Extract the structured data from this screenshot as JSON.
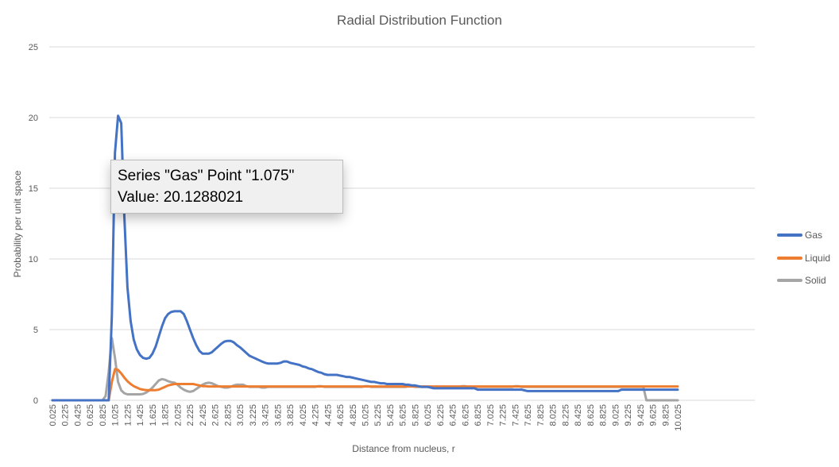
{
  "chart_data": {
    "type": "line",
    "title": "Radial Distribution Function",
    "xlabel": "Distance from nucleus, r",
    "ylabel": "Probability per unit space",
    "ylim": [
      0,
      25
    ],
    "yticks": [
      "0",
      "5",
      "10",
      "15",
      "20",
      "25"
    ],
    "grid": "horizontal",
    "legend_position": "right",
    "tick_labels": [
      "0.025",
      "0.225",
      "0.425",
      "0.625",
      "0.825",
      "1.025",
      "1.225",
      "1.425",
      "1.625",
      "1.825",
      "2.025",
      "2.225",
      "2.425",
      "2.625",
      "2.825",
      "3.025",
      "3.225",
      "3.425",
      "3.625",
      "3.825",
      "4.025",
      "4.225",
      "4.425",
      "4.625",
      "4.825",
      "5.025",
      "5.225",
      "5.425",
      "5.625",
      "5.825",
      "6.025",
      "6.225",
      "6.425",
      "6.625",
      "6.825",
      "7.025",
      "7.225",
      "7.425",
      "7.625",
      "7.825",
      "8.025",
      "8.225",
      "8.425",
      "8.625",
      "8.825",
      "9.025",
      "9.225",
      "9.425",
      "9.625",
      "9.825",
      "10.025"
    ],
    "categories": [
      0.025,
      0.075,
      0.125,
      0.175,
      0.225,
      0.275,
      0.325,
      0.375,
      0.425,
      0.475,
      0.525,
      0.575,
      0.625,
      0.675,
      0.725,
      0.775,
      0.825,
      0.875,
      0.925,
      0.975,
      1.025,
      1.075,
      1.125,
      1.175,
      1.225,
      1.275,
      1.325,
      1.375,
      1.425,
      1.475,
      1.525,
      1.575,
      1.625,
      1.675,
      1.725,
      1.775,
      1.825,
      1.875,
      1.925,
      1.975,
      2.025,
      2.075,
      2.125,
      2.175,
      2.225,
      2.275,
      2.325,
      2.375,
      2.425,
      2.475,
      2.525,
      2.575,
      2.625,
      2.675,
      2.725,
      2.775,
      2.825,
      2.875,
      2.925,
      2.975,
      3.025,
      3.075,
      3.125,
      3.175,
      3.225,
      3.275,
      3.325,
      3.375,
      3.425,
      3.475,
      3.525,
      3.575,
      3.625,
      3.675,
      3.725,
      3.775,
      3.825,
      3.875,
      3.925,
      3.975,
      4.025,
      4.075,
      4.125,
      4.175,
      4.225,
      4.275,
      4.325,
      4.375,
      4.425,
      4.475,
      4.525,
      4.575,
      4.625,
      4.675,
      4.725,
      4.775,
      4.825,
      4.875,
      4.925,
      4.975,
      5.025,
      5.075,
      5.125,
      5.175,
      5.225,
      5.275,
      5.325,
      5.375,
      5.425,
      5.475,
      5.525,
      5.575,
      5.625,
      5.675,
      5.725,
      5.775,
      5.825,
      5.875,
      5.925,
      5.975,
      6.025,
      6.075,
      6.125,
      6.175,
      6.225,
      6.275,
      6.325,
      6.375,
      6.425,
      6.475,
      6.525,
      6.575,
      6.625,
      6.675,
      6.725,
      6.775,
      6.825,
      6.875,
      6.925,
      6.975,
      7.025,
      7.075,
      7.125,
      7.175,
      7.225,
      7.275,
      7.325,
      7.375,
      7.425,
      7.475,
      7.525,
      7.575,
      7.625,
      7.675,
      7.725,
      7.775,
      7.825,
      7.875,
      7.925,
      7.975,
      8.025,
      8.075,
      8.125,
      8.175,
      8.225,
      8.275,
      8.325,
      8.375,
      8.425,
      8.475,
      8.525,
      8.575,
      8.625,
      8.675,
      8.725,
      8.775,
      8.825,
      8.875,
      8.925,
      8.975,
      9.025,
      9.075,
      9.125,
      9.175,
      9.225,
      9.275,
      9.325,
      9.375,
      9.425,
      9.475,
      9.525,
      9.575,
      9.625,
      9.675,
      9.725,
      9.775,
      9.825,
      9.875,
      9.925,
      9.975,
      10.025
    ],
    "series": [
      {
        "name": "Gas",
        "color": "#4472C4",
        "values": [
          0,
          0,
          0,
          0,
          0,
          0,
          0,
          0,
          0,
          0,
          0,
          0,
          0,
          0,
          0,
          0,
          0,
          0,
          0,
          6,
          17.5,
          20.1288021,
          19.6,
          13,
          8,
          5.6,
          4.3,
          3.6,
          3.2,
          3.0,
          2.94,
          3.0,
          3.3,
          3.8,
          4.5,
          5.2,
          5.8,
          6.1,
          6.25,
          6.3,
          6.3,
          6.3,
          6.1,
          5.6,
          5.0,
          4.4,
          3.9,
          3.5,
          3.3,
          3.3,
          3.3,
          3.4,
          3.6,
          3.8,
          4.0,
          4.15,
          4.2,
          4.2,
          4.1,
          3.9,
          3.75,
          3.55,
          3.35,
          3.15,
          3.05,
          2.95,
          2.85,
          2.75,
          2.65,
          2.6,
          2.6,
          2.6,
          2.6,
          2.65,
          2.75,
          2.75,
          2.65,
          2.6,
          2.55,
          2.5,
          2.4,
          2.35,
          2.25,
          2.2,
          2.1,
          2.0,
          1.95,
          1.85,
          1.8,
          1.8,
          1.8,
          1.8,
          1.75,
          1.7,
          1.65,
          1.65,
          1.6,
          1.55,
          1.5,
          1.45,
          1.4,
          1.35,
          1.3,
          1.3,
          1.25,
          1.2,
          1.2,
          1.15,
          1.15,
          1.15,
          1.15,
          1.15,
          1.15,
          1.1,
          1.1,
          1.05,
          1.05,
          1.0,
          0.95,
          0.95,
          0.95,
          0.9,
          0.85,
          0.85,
          0.85,
          0.85,
          0.85,
          0.85,
          0.85,
          0.85,
          0.85,
          0.85,
          0.85,
          0.85,
          0.85,
          0.85,
          0.75,
          0.75,
          0.75,
          0.75,
          0.75,
          0.75,
          0.75,
          0.75,
          0.75,
          0.75,
          0.75,
          0.75,
          0.75,
          0.75,
          0.75,
          0.7,
          0.65,
          0.65,
          0.65,
          0.65,
          0.65,
          0.65,
          0.65,
          0.65,
          0.65,
          0.65,
          0.65,
          0.65,
          0.65,
          0.65,
          0.65,
          0.65,
          0.65,
          0.65,
          0.65,
          0.65,
          0.65,
          0.65,
          0.65,
          0.65,
          0.65,
          0.65,
          0.65,
          0.65,
          0.65,
          0.65,
          0.75,
          0.75,
          0.75,
          0.75,
          0.75,
          0.75,
          0.75,
          0.75,
          0.75,
          0.75,
          0.75,
          0.75,
          0.75,
          0.75,
          0.75,
          0.75,
          0.75,
          0.75,
          0.75
        ]
      },
      {
        "name": "Liquid",
        "color": "#ED7D31",
        "values": [
          0,
          0,
          0,
          0,
          0,
          0,
          0,
          0,
          0,
          0,
          0,
          0,
          0,
          0,
          0,
          0,
          0,
          0,
          0,
          1.3,
          2.2,
          2.15,
          1.9,
          1.6,
          1.35,
          1.15,
          1.0,
          0.9,
          0.8,
          0.75,
          0.72,
          0.72,
          0.72,
          0.72,
          0.75,
          0.85,
          0.95,
          1.05,
          1.1,
          1.15,
          1.15,
          1.15,
          1.15,
          1.15,
          1.15,
          1.15,
          1.1,
          1.05,
          1.0,
          1.0,
          0.98,
          0.98,
          0.98,
          0.98,
          0.98,
          0.98,
          0.98,
          0.98,
          0.98,
          0.98,
          0.98,
          0.98,
          0.98,
          0.98,
          0.98,
          0.98,
          0.98,
          0.98,
          0.98,
          0.98,
          0.98,
          0.98,
          0.98,
          0.98,
          0.98,
          0.98,
          0.98,
          0.98,
          0.98,
          0.98,
          0.98,
          0.98,
          0.98,
          0.98,
          0.98,
          0.98,
          0.98,
          0.98,
          0.98,
          0.98,
          0.98,
          0.98,
          0.98,
          0.98,
          0.98,
          0.98,
          0.98,
          0.98,
          0.98,
          0.98,
          0.98,
          0.98,
          0.98,
          0.98,
          0.98,
          0.98,
          0.98,
          0.98,
          0.98,
          0.98,
          0.98,
          0.98,
          0.98,
          0.98,
          0.98,
          0.98,
          0.98,
          0.98,
          0.98,
          0.98,
          0.98,
          0.98,
          0.98,
          0.98,
          0.98,
          0.98,
          0.98,
          0.98,
          0.98,
          0.98,
          0.98,
          0.98,
          0.98,
          0.98,
          0.98,
          0.98,
          0.98,
          0.98,
          0.98,
          0.98,
          0.98,
          0.98,
          0.98,
          0.98,
          0.98,
          0.98,
          0.98,
          0.98,
          0.98,
          0.98,
          0.98,
          0.98,
          0.98,
          0.98,
          0.98,
          0.98,
          0.98,
          0.98,
          0.98,
          0.98,
          0.98,
          0.98,
          0.98,
          0.98,
          0.98,
          0.98,
          0.98,
          0.98,
          0.98,
          0.98,
          0.98,
          0.98,
          0.98,
          0.98,
          0.98,
          0.98,
          0.98,
          0.98,
          0.98,
          0.98,
          0.98,
          0.98,
          0.98,
          0.98,
          0.98,
          0.98,
          0.98,
          0.98,
          0.98,
          0.98,
          0.98,
          0.98,
          0.98,
          0.98,
          0.98,
          0.98,
          0.98,
          0.98,
          0.98,
          0.98,
          0.98
        ]
      },
      {
        "name": "Solid",
        "color": "#A5A5A5",
        "values": [
          0,
          0,
          0,
          0,
          0,
          0,
          0,
          0,
          0,
          0,
          0,
          0,
          0,
          0,
          0,
          0,
          0,
          0.3,
          2.0,
          4.4,
          3.0,
          1.3,
          0.7,
          0.5,
          0.42,
          0.42,
          0.42,
          0.42,
          0.42,
          0.45,
          0.55,
          0.7,
          0.9,
          1.15,
          1.4,
          1.5,
          1.45,
          1.35,
          1.28,
          1.25,
          1.1,
          0.9,
          0.75,
          0.65,
          0.6,
          0.65,
          0.8,
          0.95,
          1.1,
          1.2,
          1.25,
          1.2,
          1.1,
          1.0,
          0.95,
          0.9,
          0.9,
          0.95,
          1.05,
          1.1,
          1.1,
          1.1,
          1.0,
          0.95,
          0.95,
          0.95,
          0.95,
          0.9,
          0.9,
          0.95,
          0.95,
          0.95,
          0.95,
          0.95,
          0.95,
          0.95,
          0.95,
          0.95,
          0.95,
          0.95,
          0.95,
          0.95,
          0.95,
          0.95,
          0.95,
          1.0,
          1.0,
          0.95,
          0.95,
          0.95,
          0.95,
          0.95,
          0.95,
          0.95,
          0.95,
          0.95,
          0.95,
          0.95,
          0.95,
          0.95,
          1.0,
          1.0,
          0.95,
          0.95,
          0.95,
          0.95,
          0.95,
          0.95,
          0.95,
          0.95,
          0.95,
          0.95,
          0.95,
          0.95,
          1.0,
          1.0,
          0.95,
          0.95,
          0.95,
          0.95,
          0.95,
          0.95,
          0.95,
          0.95,
          0.95,
          0.95,
          0.95,
          0.95,
          0.95,
          0.95,
          0.95,
          1.0,
          1.0,
          0.95,
          0.95,
          0.95,
          0.95,
          0.95,
          0.95,
          0.95,
          0.95,
          0.95,
          0.95,
          0.95,
          0.95,
          0.95,
          0.95,
          0.95,
          1.0,
          1.0,
          0.95,
          0.95,
          0.95,
          0.95,
          0.95,
          0.95,
          0.95,
          0.95,
          0.95,
          0.95,
          0.95,
          0.95,
          0.95,
          0.95,
          0.95,
          0.95,
          0.95,
          0.95,
          0.95,
          0.95,
          0.95,
          0.95,
          0.95,
          0.95,
          0.95,
          0.95,
          0.95,
          0.95,
          0.95,
          0.95,
          0.95,
          0.95,
          0.95,
          0.95,
          0.95,
          0.95,
          0.95,
          0.95,
          0.95,
          0.95,
          0,
          0,
          0,
          0,
          0,
          0,
          0,
          0,
          0,
          0,
          0
        ]
      }
    ],
    "tooltip": {
      "line1": "Series \"Gas\" Point \"1.075\"",
      "line2": "Value: 20.1288021"
    }
  }
}
